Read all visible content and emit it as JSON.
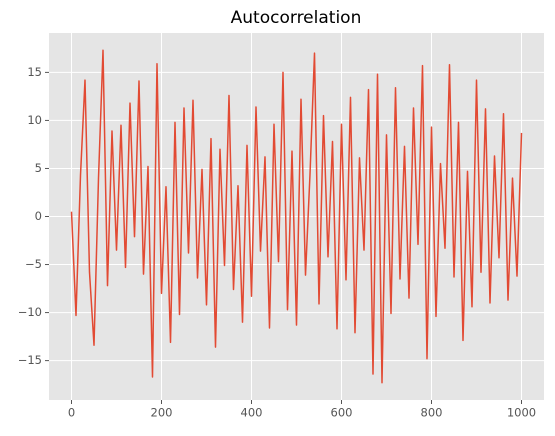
{
  "chart_data": {
    "type": "line",
    "title": "Autocorrelation",
    "x": [
      0,
      10,
      20,
      30,
      40,
      50,
      60,
      70,
      80,
      90,
      100,
      110,
      120,
      130,
      140,
      150,
      160,
      170,
      180,
      190,
      200,
      210,
      220,
      230,
      240,
      250,
      260,
      270,
      280,
      290,
      300,
      310,
      320,
      330,
      340,
      350,
      360,
      370,
      380,
      390,
      400,
      410,
      420,
      430,
      440,
      450,
      460,
      470,
      480,
      490,
      500,
      510,
      520,
      530,
      540,
      550,
      560,
      570,
      580,
      590,
      600,
      610,
      620,
      630,
      640,
      650,
      660,
      670,
      680,
      690,
      700,
      710,
      720,
      730,
      740,
      750,
      760,
      770,
      780,
      790,
      800,
      810,
      820,
      830,
      840,
      850,
      860,
      870,
      880,
      890,
      900,
      910,
      920,
      930,
      940,
      950,
      960,
      970,
      980,
      990,
      1000
    ],
    "series": [
      {
        "color": "#e24a33",
        "values": [
          0.5,
          -10.3,
          4.3,
          14.2,
          -5.8,
          -13.4,
          4.0,
          17.3,
          -7.2,
          8.9,
          -3.5,
          9.5,
          -5.3,
          11.8,
          -2.1,
          14.1,
          -6.0,
          5.2,
          -16.7,
          15.9,
          -8.0,
          3.1,
          -13.1,
          9.8,
          -10.2,
          11.3,
          -3.8,
          12.1,
          -6.4,
          4.9,
          -9.2,
          8.1,
          -13.6,
          7.0,
          -5.1,
          12.6,
          -7.6,
          3.2,
          -11.0,
          7.4,
          -8.3,
          11.4,
          -3.6,
          6.2,
          -11.6,
          9.6,
          -4.7,
          15.0,
          -9.7,
          6.8,
          -11.3,
          12.2,
          -6.1,
          4.4,
          17.0,
          -9.1,
          10.5,
          -4.2,
          7.8,
          -11.7,
          9.6,
          -6.6,
          12.4,
          -12.1,
          6.1,
          -3.5,
          13.2,
          -16.4,
          14.8,
          -17.3,
          8.5,
          -10.1,
          13.4,
          -6.5,
          7.3,
          -8.5,
          11.3,
          -2.9,
          15.7,
          -14.8,
          9.3,
          -10.4,
          5.5,
          -3.3,
          15.8,
          -6.3,
          9.8,
          -12.9,
          4.7,
          -9.4,
          14.2,
          -5.8,
          11.2,
          -9.0,
          6.3,
          -4.3,
          10.7,
          -8.7,
          4.0,
          -6.2,
          8.7
        ]
      }
    ],
    "xlim": [
      -50,
      1050
    ],
    "ylim": [
      -19.1,
      19.1
    ],
    "xticks": [
      0,
      200,
      400,
      600,
      800,
      1000
    ],
    "yticks": [
      {
        "value": -15,
        "label": "−15"
      },
      {
        "value": -10,
        "label": "−10"
      },
      {
        "value": -5,
        "label": "−5"
      },
      0,
      5,
      10,
      15
    ],
    "grid": true
  }
}
